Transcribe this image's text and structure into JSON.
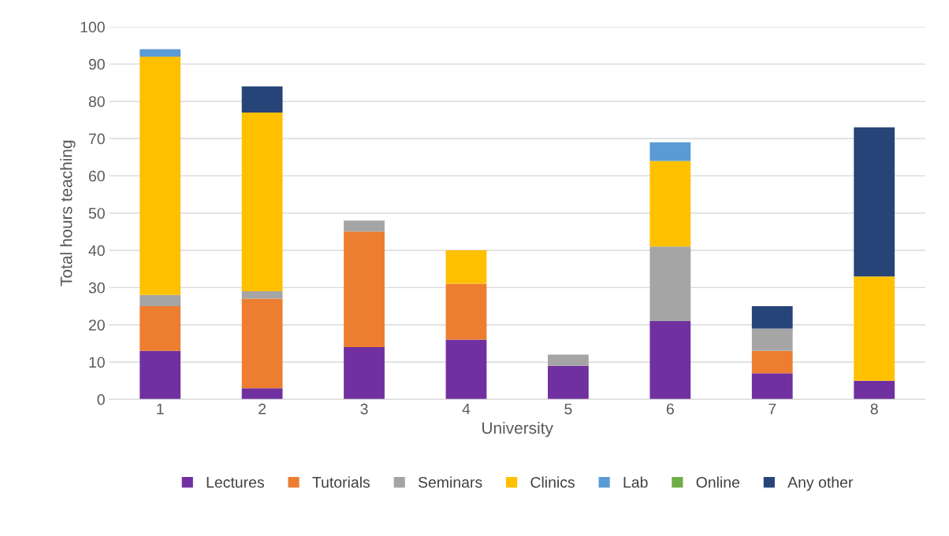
{
  "chart_data": {
    "type": "bar",
    "stacked": true,
    "xlabel": "University",
    "ylabel": "Total hours teaching",
    "categories": [
      "1",
      "2",
      "3",
      "4",
      "5",
      "6",
      "7",
      "8"
    ],
    "series": [
      {
        "name": "Lectures",
        "color": "#7030a0",
        "values": [
          13,
          3,
          14,
          16,
          9,
          21,
          7,
          5
        ]
      },
      {
        "name": "Tutorials",
        "color": "#ed7d31",
        "values": [
          12,
          24,
          31,
          15,
          null,
          null,
          6,
          null
        ]
      },
      {
        "name": "Seminars",
        "color": "#a5a5a5",
        "values": [
          3,
          2,
          3,
          null,
          3,
          20,
          6,
          null
        ]
      },
      {
        "name": "Clinics",
        "color": "#ffc000",
        "values": [
          64,
          48,
          null,
          9,
          null,
          23,
          null,
          28
        ]
      },
      {
        "name": "Lab",
        "color": "#5b9bd5",
        "values": [
          2,
          null,
          null,
          null,
          null,
          5,
          null,
          null
        ]
      },
      {
        "name": "Online",
        "color": "#70ad47",
        "values": [
          null,
          null,
          null,
          null,
          null,
          null,
          null,
          null
        ]
      },
      {
        "name": "Any other",
        "color": "#264478",
        "values": [
          null,
          7,
          null,
          null,
          null,
          null,
          6,
          40
        ]
      }
    ],
    "ylim": [
      0,
      100
    ],
    "yticks": [
      0,
      10,
      20,
      30,
      40,
      50,
      60,
      70,
      80,
      90,
      100
    ],
    "grid": "y",
    "legend": "bottom"
  }
}
